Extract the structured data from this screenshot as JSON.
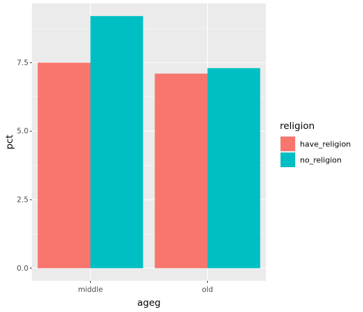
{
  "chart_data": {
    "type": "bar",
    "categories": [
      "middle",
      "old"
    ],
    "series": [
      {
        "name": "have_religion",
        "values": [
          7.5,
          7.1
        ],
        "color": "#F8766D"
      },
      {
        "name": "no_religion",
        "values": [
          9.2,
          7.3
        ],
        "color": "#00BFC4"
      }
    ],
    "xlabel": "ageg",
    "ylabel": "pct",
    "ylim": [
      -0.46,
      9.66
    ],
    "yticks": [
      0.0,
      2.5,
      5.0,
      7.5
    ],
    "ytick_labels": [
      "0.0",
      "2.5",
      "5.0",
      "7.5"
    ],
    "legend_title": "religion",
    "legend_position": "right",
    "grid": true,
    "panel_background": "#EBEBEB",
    "grid_color": "#FFFFFF"
  }
}
